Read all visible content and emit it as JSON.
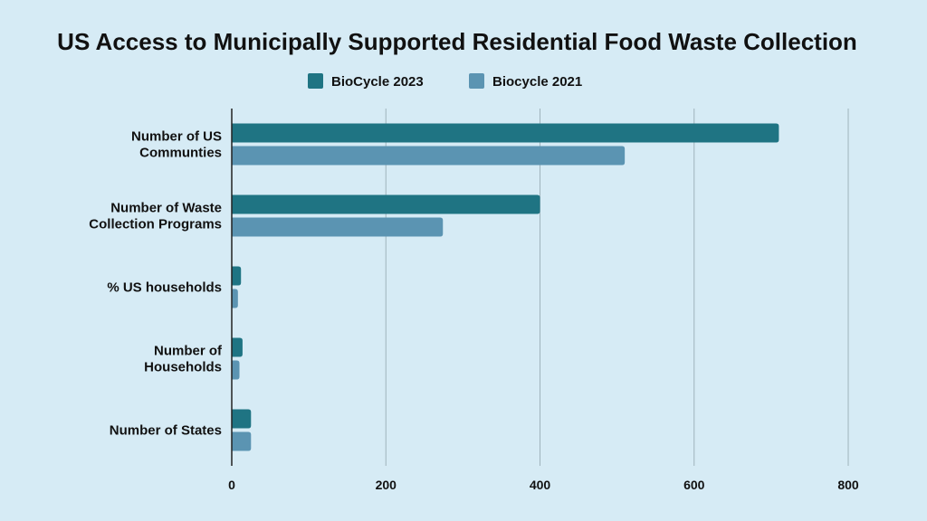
{
  "chart_data": {
    "type": "bar",
    "orientation": "horizontal",
    "title": "US Access to Municipally Supported Residential Food Waste Collection",
    "xlabel": "",
    "ylabel": "",
    "categories": [
      [
        "Number of US",
        "Communties"
      ],
      [
        "Number of Waste",
        "Collection Programs"
      ],
      [
        "% US households"
      ],
      [
        "Number of",
        "Households"
      ],
      [
        "Number of States"
      ]
    ],
    "series": [
      {
        "name": "BioCycle 2023",
        "color": "#1f7483",
        "values": [
          710,
          400,
          12,
          14,
          25
        ]
      },
      {
        "name": "Biocycle 2021",
        "color": "#5b94b2",
        "values": [
          510,
          274,
          8,
          10,
          25
        ]
      }
    ],
    "xlim": [
      0,
      800
    ],
    "xticks": [
      "0",
      "200",
      "400",
      "600",
      "800"
    ],
    "grid": true,
    "legend": "top-center"
  }
}
